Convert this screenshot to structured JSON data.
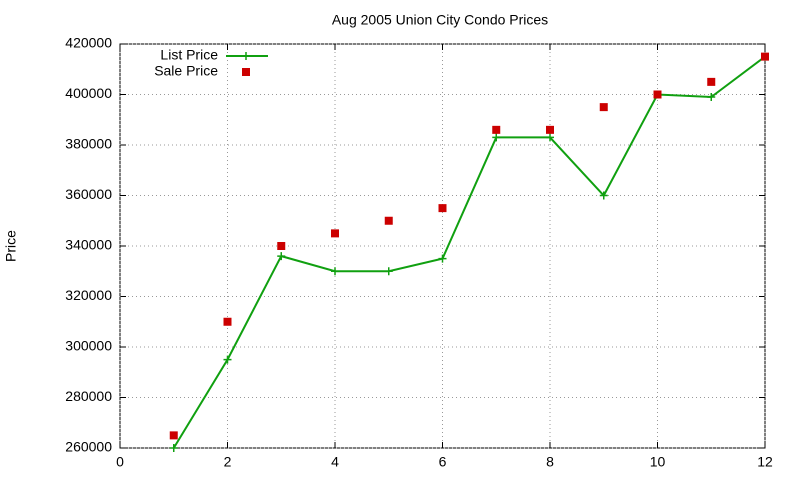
{
  "chart_data": {
    "type": "line",
    "title": "Aug 2005 Union City Condo Prices",
    "y_label": "Price",
    "x": [
      1,
      2,
      3,
      4,
      5,
      6,
      7,
      8,
      9,
      10,
      11,
      12
    ],
    "series": [
      {
        "name": "List Price",
        "color": "#10a010",
        "style": "linespoints",
        "marker": "plus",
        "values": [
          260000,
          295000,
          336000,
          330000,
          330000,
          335000,
          383000,
          383000,
          360000,
          400000,
          399000,
          415000
        ]
      },
      {
        "name": "Sale Price",
        "color": "#cc0000",
        "style": "points",
        "marker": "square",
        "values": [
          265000,
          310000,
          340000,
          345000,
          350000,
          355000,
          386000,
          386000,
          395000,
          400000,
          405000,
          415000
        ]
      }
    ],
    "xlim": [
      0,
      12
    ],
    "xticks": [
      0,
      2,
      4,
      6,
      8,
      10,
      12
    ],
    "ylim": [
      260000,
      420000
    ],
    "yticks": [
      260000,
      280000,
      300000,
      320000,
      340000,
      360000,
      380000,
      400000,
      420000
    ],
    "grid": true,
    "legend": "top-left"
  }
}
